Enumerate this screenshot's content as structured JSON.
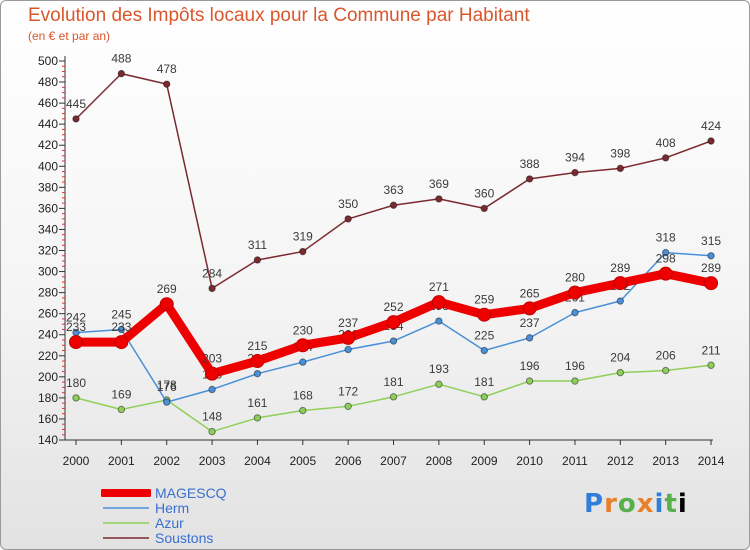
{
  "chart_data": {
    "type": "line",
    "title": "Evolution des Impôts locaux pour la Commune par Habitant",
    "subtitle": "(en € et par an)",
    "xlabel": "",
    "ylabel": "",
    "categories": [
      "2000",
      "2001",
      "2002",
      "2003",
      "2004",
      "2005",
      "2006",
      "2007",
      "2008",
      "2009",
      "2010",
      "2011",
      "2012",
      "2013",
      "2014"
    ],
    "yticks": [
      140,
      160,
      180,
      200,
      220,
      240,
      260,
      280,
      300,
      320,
      340,
      360,
      380,
      400,
      420,
      440,
      460,
      480,
      500
    ],
    "ylim": [
      140,
      500
    ],
    "grid": false,
    "legend_position": "bottom-left",
    "series": [
      {
        "name": "MAGESCQ",
        "color": "#ee0000",
        "values": [
          233,
          233,
          269,
          203,
          215,
          230,
          237,
          252,
          271,
          259,
          265,
          280,
          289,
          298,
          289
        ]
      },
      {
        "name": "Herm",
        "color": "#4a90d8",
        "values": [
          242,
          245,
          176,
          188,
          203,
          214,
          226,
          234,
          253,
          225,
          237,
          261,
          272,
          318,
          315
        ]
      },
      {
        "name": "Azur",
        "color": "#8ecf5a",
        "values": [
          180,
          169,
          178,
          148,
          161,
          168,
          172,
          181,
          193,
          181,
          196,
          196,
          204,
          206,
          211
        ]
      },
      {
        "name": "Soustons",
        "color": "#7a2a30",
        "values": [
          445,
          488,
          478,
          284,
          311,
          319,
          350,
          363,
          369,
          360,
          388,
          394,
          398,
          408,
          424
        ]
      }
    ]
  },
  "logo": {
    "letters": [
      "P",
      "r",
      "o",
      "x",
      "i",
      "t",
      "i"
    ]
  }
}
